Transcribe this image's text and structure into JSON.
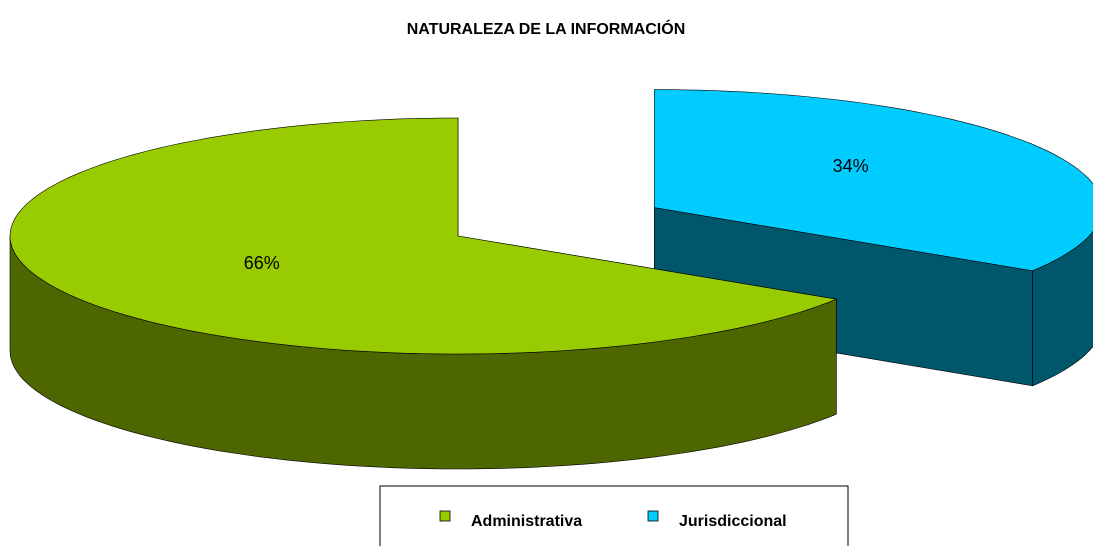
{
  "chart_data": {
    "type": "pie3d",
    "title": "NATURALEZA DE LA INFORMACIÓN",
    "categories": [
      "Jurisdiccional",
      "Administrativa"
    ],
    "values": [
      34,
      66
    ],
    "value_labels": [
      "34%",
      "66%"
    ],
    "colors": [
      "#00ccff",
      "#99cc00"
    ],
    "legend": "bottom",
    "legend_order": [
      1,
      0
    ]
  }
}
